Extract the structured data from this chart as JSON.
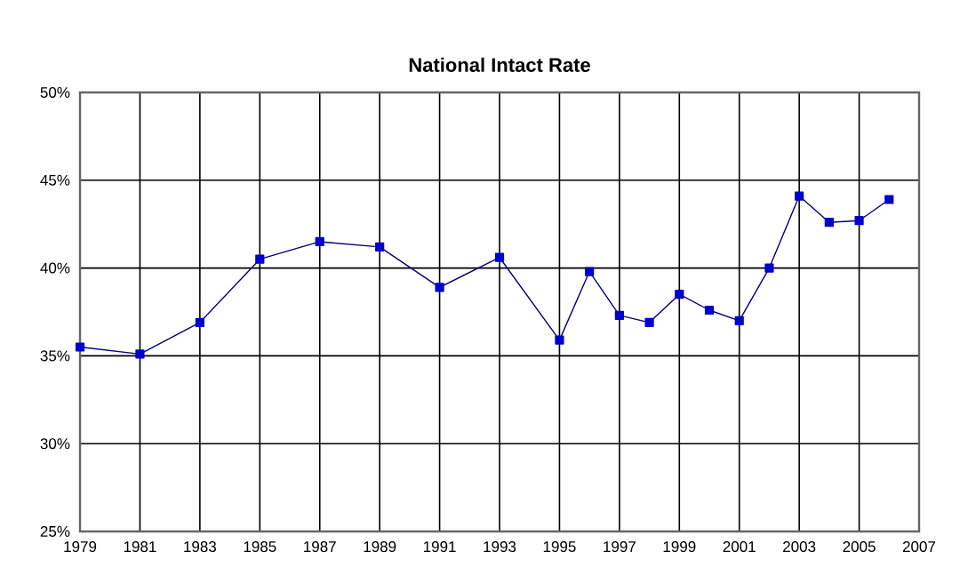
{
  "chart_data": {
    "type": "line",
    "title": "National Intact Rate",
    "x": [
      1979,
      1981,
      1983,
      1985,
      1987,
      1989,
      1991,
      1993,
      1995,
      1996,
      1997,
      1998,
      1999,
      2000,
      2001,
      2002,
      2003,
      2004,
      2005,
      2006
    ],
    "series": [
      {
        "color": "#0000cc",
        "values": [
          35.5,
          35.1,
          36.9,
          40.5,
          41.5,
          41.2,
          38.9,
          40.6,
          35.9,
          39.8,
          37.3,
          36.9,
          38.5,
          37.6,
          37.0,
          40.0,
          44.1,
          42.6,
          42.7,
          43.9
        ]
      }
    ],
    "xlim": [
      1979,
      2007
    ],
    "xticks": [
      1979,
      1981,
      1983,
      1985,
      1987,
      1989,
      1991,
      1993,
      1995,
      1997,
      1999,
      2001,
      2003,
      2005,
      2007
    ],
    "ylim": [
      25,
      50
    ],
    "yticks": [
      {
        "value": 25,
        "label": "25%"
      },
      {
        "value": 30,
        "label": "30%"
      },
      {
        "value": 35,
        "label": "35%"
      },
      {
        "value": 40,
        "label": "40%"
      },
      {
        "value": 45,
        "label": "45%"
      },
      {
        "value": 50,
        "label": "50%"
      }
    ],
    "grid": true,
    "marker": "square",
    "line_style": "solid"
  }
}
